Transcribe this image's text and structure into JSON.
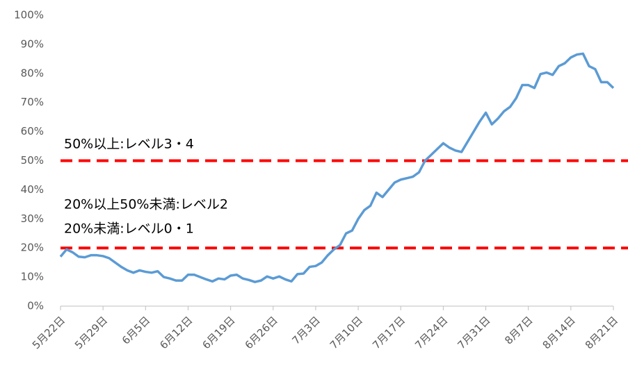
{
  "chart_data": {
    "type": "line",
    "categories": [
      "5月22日",
      null,
      null,
      null,
      null,
      null,
      null,
      "5月29日",
      null,
      null,
      null,
      null,
      null,
      null,
      "6月5日",
      null,
      null,
      null,
      null,
      null,
      null,
      "6月12日",
      null,
      null,
      null,
      null,
      null,
      null,
      "6月19日",
      null,
      null,
      null,
      null,
      null,
      null,
      "6月26日",
      null,
      null,
      null,
      null,
      null,
      null,
      "7月3日",
      null,
      null,
      null,
      null,
      null,
      null,
      "7月10日",
      null,
      null,
      null,
      null,
      null,
      null,
      "7月17日",
      null,
      null,
      null,
      null,
      null,
      null,
      "7月24日",
      null,
      null,
      null,
      null,
      null,
      null,
      "7月31日",
      null,
      null,
      null,
      null,
      null,
      null,
      "8月7日",
      null,
      null,
      null,
      null,
      null,
      null,
      "8月14日",
      null,
      null,
      null,
      null,
      null,
      null,
      "8月21日"
    ],
    "values": [
      17,
      19.5,
      18.5,
      17,
      16.8,
      17.5,
      17.5,
      17.2,
      16.5,
      15,
      13.5,
      12.3,
      11.5,
      12.3,
      11.8,
      11.5,
      12,
      10,
      9.5,
      8.8,
      8.8,
      10.8,
      10.8,
      10,
      9.2,
      8.5,
      9.5,
      9.2,
      10.5,
      10.8,
      9.5,
      9,
      8.3,
      8.8,
      10.2,
      9.5,
      10.2,
      9.2,
      8.5,
      11,
      11.2,
      13.5,
      13.8,
      15,
      17.5,
      19.5,
      21,
      25,
      26,
      30,
      33,
      34.5,
      39,
      37.5,
      40,
      42.5,
      43.5,
      44,
      44.5,
      46,
      50,
      52,
      54,
      56,
      54.5,
      53.5,
      53,
      56.5,
      60,
      63.5,
      66.5,
      62.5,
      64.5,
      67,
      68.5,
      71.5,
      76,
      76,
      75,
      79.8,
      80.3,
      79.5,
      82.5,
      83.5,
      85.5,
      86.5,
      86.8,
      82.5,
      81.5,
      77,
      77,
      75
    ],
    "color": "#5b9bd5",
    "ylim": [
      0,
      100
    ],
    "yticks": [
      {
        "value": 0,
        "label": "0%"
      },
      {
        "value": 10,
        "label": "10%"
      },
      {
        "value": 20,
        "label": "20%"
      },
      {
        "value": 30,
        "label": "30%"
      },
      {
        "value": 40,
        "label": "40%"
      },
      {
        "value": 50,
        "label": "50%"
      },
      {
        "value": 60,
        "label": "60%"
      },
      {
        "value": 70,
        "label": "70%"
      },
      {
        "value": 80,
        "label": "80%"
      },
      {
        "value": 90,
        "label": "90%"
      },
      {
        "value": 100,
        "label": "100%"
      }
    ],
    "reference_lines": [
      {
        "value": 50,
        "color": "#ff0000"
      },
      {
        "value": 20,
        "color": "#ff0000"
      }
    ],
    "annotations": [
      "50%以上:レベル3・4",
      "20%以上50%未満:レベル2",
      "20%未満:レベル0・1"
    ]
  }
}
